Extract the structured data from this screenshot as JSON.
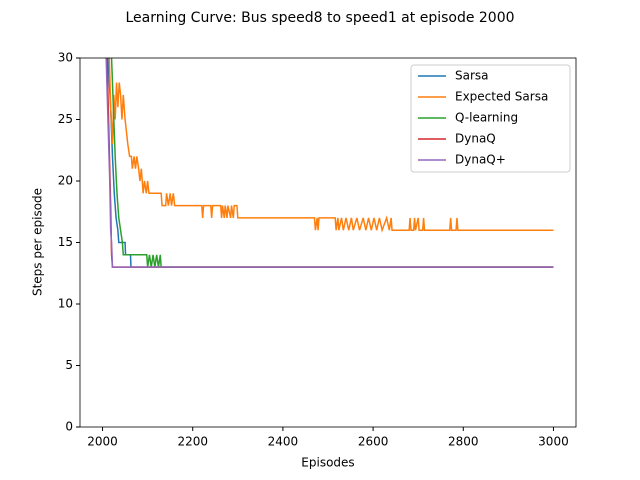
{
  "chart_data": {
    "type": "line",
    "title": "Learning Curve: Bus speed8 to speed1 at episode 2000",
    "x_label": "Episodes",
    "y_label": "Steps per episode",
    "xlim": [
      1950,
      3050
    ],
    "ylim": [
      0,
      30
    ],
    "xticks": [
      2000,
      2200,
      2400,
      2600,
      2800,
      3000
    ],
    "yticks": [
      0,
      5,
      10,
      15,
      20,
      25,
      30
    ],
    "legend": "upper right",
    "series": [
      {
        "name": "Sarsa",
        "color": "#1f77b4",
        "x": [
          2012,
          2018,
          2022,
          2026,
          2030,
          2034,
          2036,
          2050,
          2051,
          2062,
          2063,
          3000
        ],
        "values": [
          30,
          26,
          22,
          19,
          17,
          16,
          15,
          15,
          14,
          14,
          13,
          13
        ]
      },
      {
        "name": "Expected Sarsa",
        "color": "#ff7f0e",
        "x": [
          2015,
          2018,
          2022,
          2025,
          2028,
          2031,
          2034,
          2037,
          2040,
          2043,
          2046,
          2050,
          2053,
          2056,
          2060,
          2064,
          2066,
          2070,
          2073,
          2076,
          2080,
          2083,
          2086,
          2090,
          2093,
          2097,
          2100,
          2103,
          2130,
          2132,
          2140,
          2142,
          2146,
          2150,
          2153,
          2157,
          2160,
          2220,
          2222,
          2224,
          2240,
          2242,
          2244,
          2262,
          2264,
          2266,
          2270,
          2272,
          2276,
          2278,
          2284,
          2286,
          2290,
          2292,
          2298,
          2300,
          2470,
          2472,
          2476,
          2478,
          2480,
          2516,
          2518,
          2522,
          2524,
          2530,
          2534,
          2540,
          2546,
          2552,
          2556,
          2564,
          2570,
          2578,
          2584,
          2590,
          2596,
          2602,
          2608,
          2614,
          2620,
          2630,
          2636,
          2640,
          2642,
          2680,
          2682,
          2684,
          2690,
          2692,
          2694,
          2700,
          2702,
          2710,
          2712,
          2714,
          2770,
          2772,
          2774,
          2784,
          2786,
          2788,
          3000
        ],
        "values": [
          30,
          26,
          23,
          27,
          25,
          28,
          26,
          28,
          27,
          25,
          27,
          25,
          24,
          23,
          22,
          22,
          21,
          22,
          21,
          22,
          21,
          20,
          21,
          19,
          20,
          19,
          20,
          19,
          19,
          18,
          18,
          19,
          18,
          19,
          18,
          19,
          18,
          18,
          17,
          18,
          18,
          17,
          18,
          18,
          17,
          18,
          17,
          18,
          17,
          18,
          17,
          18,
          17,
          18,
          18,
          17,
          17,
          16,
          17,
          16,
          17,
          17,
          16,
          17,
          16,
          17,
          16,
          17,
          16,
          17,
          16,
          17,
          16,
          17,
          16,
          17,
          16,
          17,
          16,
          17,
          16,
          17,
          16,
          17,
          16,
          16,
          17,
          16,
          16,
          17,
          16,
          17,
          16,
          16,
          17,
          16,
          16,
          17,
          16,
          16,
          17,
          16,
          16
        ]
      },
      {
        "name": "Q-learning",
        "color": "#2ca02c",
        "x": [
          2020,
          2024,
          2028,
          2032,
          2036,
          2040,
          2044,
          2046,
          2098,
          2100,
          2104,
          2108,
          2112,
          2116,
          2120,
          2124,
          2128,
          2130,
          3000
        ],
        "values": [
          30,
          26,
          22,
          19,
          17,
          16,
          15,
          14,
          14,
          13,
          14,
          13,
          14,
          13,
          14,
          13,
          14,
          13,
          13
        ]
      },
      {
        "name": "DynaQ",
        "color": "#d62728",
        "x": [
          2010,
          2014,
          2018,
          2020,
          2022,
          3000
        ],
        "values": [
          30,
          24,
          18,
          14,
          13,
          13
        ]
      },
      {
        "name": "DynaQ+",
        "color": "#9467bd",
        "x": [
          2008,
          2012,
          2016,
          2018,
          2020,
          2022,
          3000
        ],
        "values": [
          30,
          25,
          20,
          16,
          15,
          13,
          13
        ]
      }
    ]
  }
}
